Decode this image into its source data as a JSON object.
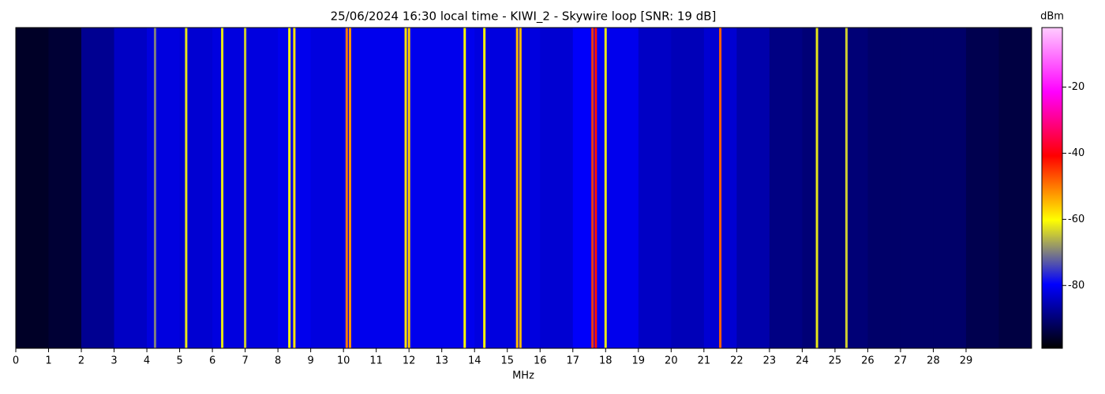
{
  "chart_data": {
    "type": "waterfall",
    "title": "25/06/2024 16:30 local time - KIWI_2 - Skywire loop [SNR: 19 dB]",
    "xlabel": "MHz",
    "colorbar_label": "dBm",
    "xlim": [
      0,
      31
    ],
    "xticks": [
      0,
      1,
      2,
      3,
      4,
      5,
      6,
      7,
      8,
      9,
      10,
      11,
      12,
      13,
      14,
      15,
      16,
      17,
      18,
      19,
      20,
      21,
      22,
      23,
      24,
      25,
      26,
      27,
      28,
      29
    ],
    "clim": [
      -99,
      -2
    ],
    "cticks": [
      -20,
      -40,
      -60,
      -80
    ],
    "colormap": [
      "#000000",
      "#0000ff",
      "#ffff00",
      "#ff0000",
      "#ff00ff",
      "#ffccff"
    ],
    "x": [
      0.5,
      1.5,
      2.5,
      3.5,
      4.5,
      5.5,
      6.5,
      7.5,
      8.5,
      9.5,
      10.5,
      11.5,
      12.5,
      13.5,
      14.5,
      15.5,
      16.5,
      17.5,
      18.5,
      19.5,
      20.5,
      21.5,
      22.5,
      23.5,
      24.5,
      25.5,
      26.5,
      27.5,
      28.5,
      29.5,
      30.5
    ],
    "values": [
      -96,
      -95,
      -88,
      -84,
      -82,
      -83,
      -82,
      -82,
      -81,
      -82,
      -81,
      -81,
      -81,
      -81,
      -82,
      -82,
      -83,
      -80,
      -81,
      -84,
      -85,
      -83,
      -86,
      -89,
      -90,
      -90,
      -91,
      -91,
      -91,
      -93,
      -94
    ],
    "carriers": {
      "x": [
        4.25,
        5.2,
        6.3,
        7.0,
        8.35,
        8.5,
        10.1,
        10.2,
        11.9,
        12.0,
        13.7,
        14.3,
        15.3,
        15.4,
        17.6,
        17.7,
        18.0,
        21.5,
        24.45,
        25.35
      ],
      "values": [
        -70,
        -62,
        -62,
        -64,
        -60,
        -58,
        -50,
        -52,
        -58,
        -56,
        -60,
        -60,
        -55,
        -55,
        -45,
        -42,
        -62,
        -48,
        -62,
        -64
      ]
    }
  }
}
